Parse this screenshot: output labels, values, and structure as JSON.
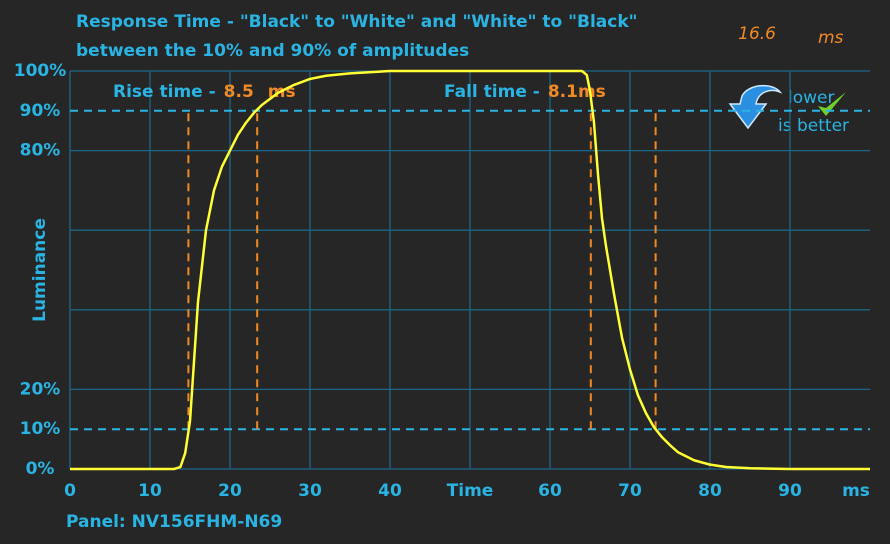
{
  "chart_data": {
    "type": "line",
    "title": [
      "Response Time - \"Black\" to \"White\" and \"White\" to \"Black\"",
      "between the 10% and 90% of amplitudes"
    ],
    "headline": {
      "value": "16.6",
      "unit": "ms"
    },
    "badge": [
      "lower",
      "is better"
    ],
    "y_label": "Luminance",
    "x_label": "Time",
    "x_unit": "ms",
    "footer": "Panel: NV156FHM-N69",
    "rise": {
      "label": "Rise time -",
      "value": "8.5",
      "unit": "ms"
    },
    "fall": {
      "label": "Fall time -",
      "value": "8.1",
      "unit": "ms"
    },
    "xlim": [
      0,
      100
    ],
    "ylim": [
      0,
      100
    ],
    "xticks": [
      0,
      10,
      20,
      30,
      40,
      60,
      70,
      80,
      90
    ],
    "xgrid": [
      10,
      20,
      30,
      40,
      50,
      60,
      70,
      80,
      90
    ],
    "ygrid": [
      20,
      40,
      60,
      80,
      100
    ],
    "yticks": [
      {
        "value": 0,
        "label": "0%"
      },
      {
        "value": 10,
        "label": "10%"
      },
      {
        "value": 20,
        "label": "20%"
      },
      {
        "value": 80,
        "label": "80%"
      },
      {
        "value": 90,
        "label": "90%"
      },
      {
        "value": 100,
        "label": "100%"
      }
    ],
    "hlines": [
      10,
      90
    ],
    "vlines": [
      14.8,
      23.4,
      65.1,
      73.2
    ],
    "series": [
      {
        "name": "Luminance",
        "color": "#ffff33",
        "x": [
          0,
          13,
          13.8,
          14.4,
          15,
          16,
          17,
          18,
          19,
          20,
          21,
          22,
          23,
          24,
          25,
          26,
          28,
          30,
          32,
          35,
          40,
          50,
          60,
          64,
          64.6,
          65,
          65.5,
          66,
          66.5,
          67,
          68,
          69,
          70,
          71,
          72,
          73,
          74,
          75,
          76,
          78,
          80,
          82,
          85,
          90,
          100
        ],
        "values": [
          0,
          0,
          0.5,
          4,
          12,
          42,
          60,
          70,
          76,
          80,
          84,
          87,
          89.5,
          91.5,
          93,
          94.5,
          96.5,
          98,
          98.8,
          99.4,
          100,
          100,
          100,
          100,
          99,
          95,
          87,
          74,
          63,
          56,
          44,
          33,
          25,
          18.5,
          14,
          10.5,
          8,
          6,
          4.2,
          2.2,
          1.1,
          0.5,
          0.2,
          0,
          0
        ]
      }
    ],
    "grid_color": "#1c6687",
    "ref_color": "#2ab4e4",
    "marker_color": "#f08a24",
    "text_color": "#2ab4e4"
  }
}
